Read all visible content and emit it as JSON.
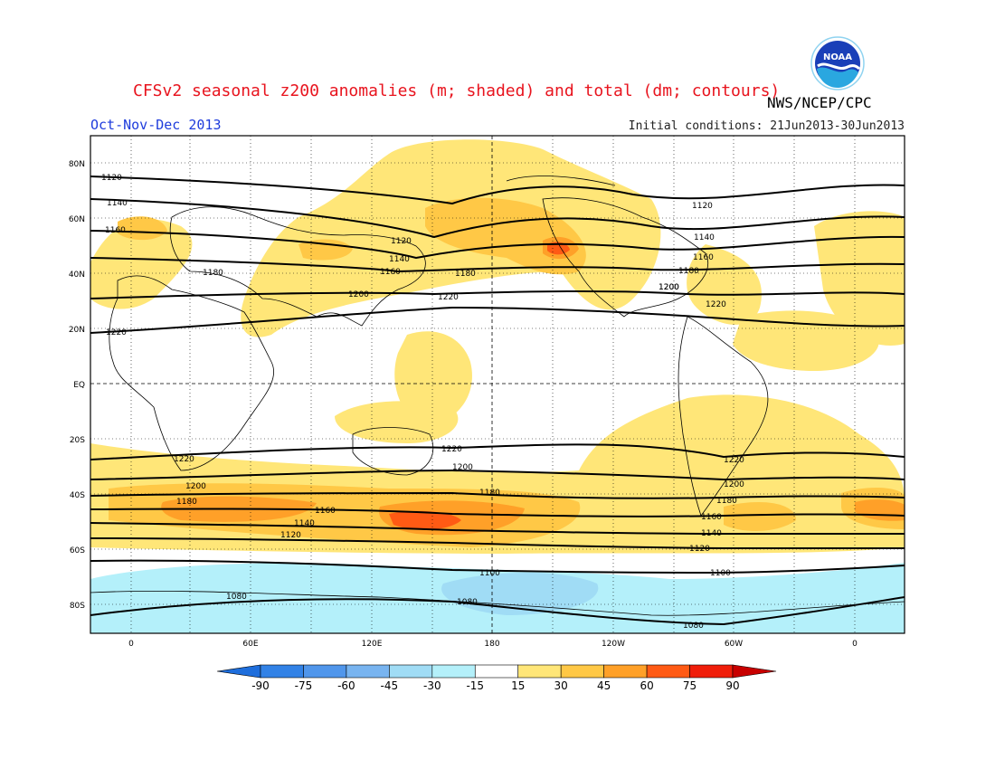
{
  "header": {
    "title": "CFSv2 seasonal z200 anomalies (m; shaded) and total (dm; contours)",
    "season": "Oct-Nov-Dec 2013",
    "initial_conditions": "Initial conditions: 21Jun2013-30Jun2013",
    "agency": "NWS/NCEP/CPC",
    "logo_text": "NOAA"
  },
  "map": {
    "lat_labels": [
      "80N",
      "60N",
      "40N",
      "20N",
      "EQ",
      "20S",
      "40S",
      "60S",
      "80S"
    ],
    "lon_labels": [
      "0",
      "60E",
      "120E",
      "180",
      "120W",
      "60W",
      "0"
    ],
    "contour_labels": [
      {
        "text": "1120",
        "group": "nh"
      },
      {
        "text": "1140",
        "group": "nh"
      },
      {
        "text": "1160",
        "group": "nh"
      },
      {
        "text": "1180",
        "group": "nh"
      },
      {
        "text": "1200",
        "group": "nh"
      },
      {
        "text": "1220",
        "group": "nh"
      },
      {
        "text": "1120",
        "group": "nh"
      },
      {
        "text": "1140",
        "group": "nh"
      },
      {
        "text": "1160",
        "group": "nh"
      },
      {
        "text": "1180",
        "group": "nh"
      },
      {
        "text": "1200",
        "group": "nh"
      },
      {
        "text": "1220",
        "group": "nh"
      },
      {
        "text": "1120",
        "group": "nh"
      },
      {
        "text": "1140",
        "group": "nh"
      },
      {
        "text": "1160",
        "group": "nh"
      },
      {
        "text": "1180",
        "group": "nh"
      },
      {
        "text": "1200",
        "group": "nh"
      },
      {
        "text": "1220",
        "group": "nh"
      },
      {
        "text": "1220",
        "group": "sh"
      },
      {
        "text": "1200",
        "group": "sh"
      },
      {
        "text": "1180",
        "group": "sh"
      },
      {
        "text": "1160",
        "group": "sh"
      },
      {
        "text": "1140",
        "group": "sh"
      },
      {
        "text": "1120",
        "group": "sh"
      },
      {
        "text": "1220",
        "group": "sh"
      },
      {
        "text": "1200",
        "group": "sh"
      },
      {
        "text": "1180",
        "group": "sh"
      },
      {
        "text": "1220",
        "group": "sh"
      },
      {
        "text": "1200",
        "group": "sh"
      },
      {
        "text": "1180",
        "group": "sh"
      },
      {
        "text": "1160",
        "group": "sh"
      },
      {
        "text": "1140",
        "group": "sh"
      },
      {
        "text": "1120",
        "group": "sh"
      },
      {
        "text": "1100",
        "group": "sh"
      },
      {
        "text": "1100",
        "group": "sh"
      },
      {
        "text": "1080",
        "group": "sh"
      },
      {
        "text": "1080",
        "group": "sh"
      },
      {
        "text": "1080",
        "group": "sh"
      }
    ]
  },
  "colorbar": {
    "ticks": [
      "-90",
      "-75",
      "-60",
      "-45",
      "-30",
      "-15",
      "15",
      "30",
      "45",
      "60",
      "75",
      "90"
    ],
    "colors": [
      "#1e6edc",
      "#3282e6",
      "#5096eb",
      "#78b4f0",
      "#a0dcf5",
      "#b4f0fa",
      "#ffffff",
      "#ffe678",
      "#ffc846",
      "#ffa028",
      "#ff5a14",
      "#f01e0a",
      "#c80000"
    ]
  }
}
